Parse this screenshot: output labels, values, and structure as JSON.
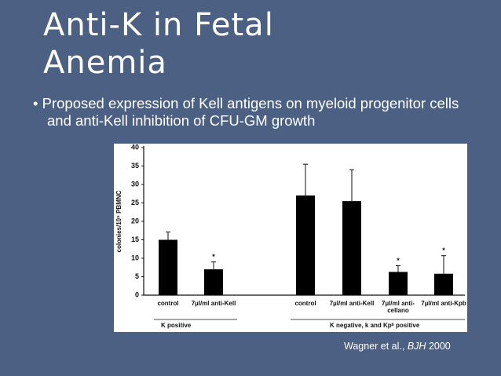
{
  "slide": {
    "title": "Anti-K in Fetal Anemia",
    "bullet": "Proposed expression of Kell antigens on myeloid progenitor cells and anti-Kell inhibition of CFU-GM growth",
    "citation": [
      "Wagner et al.,",
      "BJH",
      "2000"
    ]
  },
  "chart_data": {
    "type": "bar",
    "y_label": "colonies/10⁵ PBMNC",
    "categories": [
      "control",
      "7µl/ml anti-Kell",
      "control",
      "7µl/ml anti-Kell",
      "7µl/ml anti-cellano",
      "7µl/ml anti-Kpb"
    ],
    "values": [
      15,
      7,
      27,
      25.5,
      6.3,
      5.8
    ],
    "errors": [
      2.1,
      2,
      8.5,
      8.5,
      1.7,
      4.9
    ],
    "significance": [
      null,
      "*",
      null,
      null,
      "*",
      "*"
    ],
    "groups": [
      "K positive",
      "K negative, k and Kpᵇ positive"
    ],
    "color": "#000000",
    "ylim": [
      0,
      40
    ],
    "yticks": [
      0,
      5,
      10,
      15,
      20,
      25,
      30,
      35,
      40
    ]
  }
}
